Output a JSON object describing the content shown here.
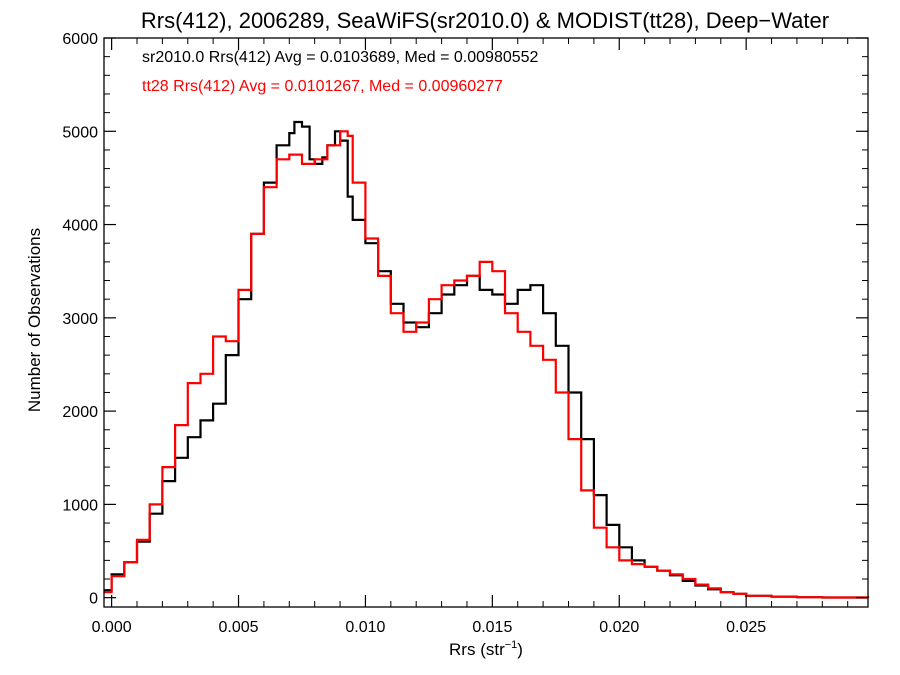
{
  "chart_data": {
    "type": "line",
    "title": "Rrs(412), 2006289, SeaWiFS(sr2010.0) & MODIST(tt28), Deep−Water",
    "xlabel": "Rrs (str",
    "xlabel_sup": "−1",
    "xlabel_end": ")",
    "ylabel": "Number of Observations",
    "xlim": [
      -0.0003,
      0.0298
    ],
    "ylim": [
      -100,
      6000
    ],
    "xticks": [
      0.0,
      0.005,
      0.01,
      0.015,
      0.02,
      0.025
    ],
    "xtick_labels": [
      "0.000",
      "0.005",
      "0.010",
      "0.015",
      "0.020",
      "0.025"
    ],
    "yticks": [
      0,
      1000,
      2000,
      3000,
      4000,
      5000,
      6000
    ],
    "ytick_labels": [
      "0",
      "1000",
      "2000",
      "3000",
      "4000",
      "5000",
      "6000"
    ],
    "step": "histogram",
    "series": [
      {
        "label": "sr2010.0 Rrs(412) Avg = 0.0103689, Med = 0.00980552",
        "color": "#000000",
        "x": [
          -0.0003,
          0.0,
          0.0005,
          0.001,
          0.0015,
          0.002,
          0.0025,
          0.003,
          0.0035,
          0.004,
          0.0045,
          0.005,
          0.0055,
          0.006,
          0.0065,
          0.007,
          0.0072,
          0.0075,
          0.0078,
          0.008,
          0.0083,
          0.0085,
          0.0088,
          0.009,
          0.0093,
          0.0095,
          0.01,
          0.0105,
          0.011,
          0.0115,
          0.012,
          0.0125,
          0.013,
          0.0135,
          0.014,
          0.0145,
          0.015,
          0.0155,
          0.016,
          0.0165,
          0.017,
          0.0175,
          0.018,
          0.0185,
          0.019,
          0.0195,
          0.02,
          0.0205,
          0.021,
          0.0215,
          0.022,
          0.0225,
          0.023,
          0.0235,
          0.024,
          0.0245,
          0.025,
          0.026,
          0.027,
          0.028,
          0.0298
        ],
        "values": [
          80,
          250,
          380,
          600,
          900,
          1250,
          1500,
          1720,
          1900,
          2080,
          2600,
          3200,
          3900,
          4450,
          4850,
          4980,
          5100,
          5050,
          4700,
          4650,
          4720,
          4850,
          5000,
          4900,
          4300,
          4050,
          3800,
          3500,
          3150,
          2950,
          2900,
          3050,
          3250,
          3350,
          3450,
          3300,
          3250,
          3150,
          3300,
          3350,
          3050,
          2700,
          2200,
          1700,
          1100,
          780,
          540,
          400,
          330,
          290,
          240,
          180,
          130,
          90,
          60,
          40,
          20,
          10,
          5,
          2,
          0
        ]
      },
      {
        "label": "tt28 Rrs(412) Avg = 0.0101267, Med = 0.00960277",
        "color": "#ff0000",
        "x": [
          -0.0003,
          0.0,
          0.0005,
          0.001,
          0.0015,
          0.002,
          0.0025,
          0.003,
          0.0035,
          0.004,
          0.0045,
          0.005,
          0.0055,
          0.006,
          0.0065,
          0.007,
          0.0075,
          0.008,
          0.0085,
          0.009,
          0.0093,
          0.0095,
          0.01,
          0.0105,
          0.011,
          0.0115,
          0.012,
          0.0125,
          0.013,
          0.0135,
          0.014,
          0.0145,
          0.015,
          0.0155,
          0.016,
          0.0165,
          0.017,
          0.0175,
          0.018,
          0.0185,
          0.019,
          0.0195,
          0.02,
          0.0205,
          0.021,
          0.0215,
          0.022,
          0.0225,
          0.023,
          0.0235,
          0.024,
          0.0245,
          0.025,
          0.026,
          0.027,
          0.028,
          0.0298
        ],
        "values": [
          60,
          230,
          380,
          620,
          1000,
          1400,
          1850,
          2300,
          2400,
          2800,
          2750,
          3300,
          3900,
          4400,
          4700,
          4750,
          4650,
          4700,
          4850,
          5000,
          4950,
          4450,
          3850,
          3450,
          3050,
          2850,
          2950,
          3200,
          3350,
          3400,
          3450,
          3600,
          3500,
          3050,
          2850,
          2700,
          2550,
          2200,
          1700,
          1150,
          750,
          540,
          400,
          360,
          330,
          290,
          250,
          200,
          140,
          100,
          60,
          40,
          20,
          10,
          5,
          2,
          0
        ]
      }
    ]
  }
}
